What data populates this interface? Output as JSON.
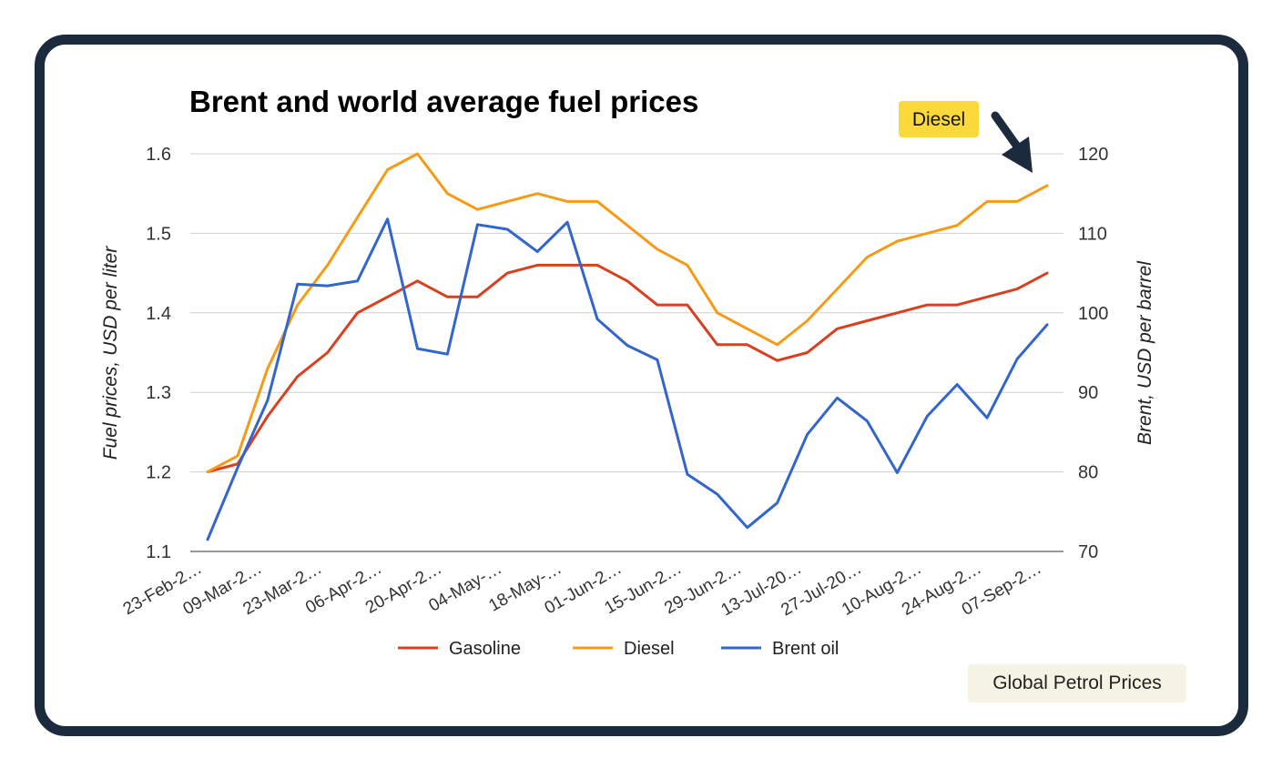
{
  "chart_data": {
    "type": "line",
    "title": "Brent and world average fuel prices",
    "ylabel": "Fuel prices, USD per liter",
    "y2label": "Brent, USD per barrel",
    "ylim": [
      1.1,
      1.6
    ],
    "y2lim": [
      70,
      120
    ],
    "yticks": [
      "1.1",
      "1.2",
      "1.3",
      "1.4",
      "1.5",
      "1.6"
    ],
    "y2ticks": [
      "70",
      "80",
      "90",
      "100",
      "110",
      "120"
    ],
    "x_tick_labels": [
      "23-Feb-2…",
      "09-Mar-2…",
      "23-Mar-2…",
      "06-Apr-2…",
      "20-Apr-2…",
      "04-May-…",
      "18-May-…",
      "01-Jun-2…",
      "15-Jun-2…",
      "29-Jun-2…",
      "13-Jul-20…",
      "27-Jul-20…",
      "10-Aug-2…",
      "24-Aug-2…",
      "07-Sep-2…"
    ],
    "grid": true,
    "legend_position": "bottom",
    "series": [
      {
        "name": "Gasoline",
        "axis": "left",
        "color": "#d8401f",
        "values": [
          1.2,
          1.21,
          1.27,
          1.32,
          1.35,
          1.4,
          1.42,
          1.44,
          1.42,
          1.42,
          1.45,
          1.46,
          1.46,
          1.46,
          1.44,
          1.41,
          1.41,
          1.36,
          1.36,
          1.34,
          1.35,
          1.38,
          1.39,
          1.4,
          1.41,
          1.41,
          1.42,
          1.43,
          1.45
        ]
      },
      {
        "name": "Diesel",
        "axis": "left",
        "color": "#f59b16",
        "values": [
          1.2,
          1.22,
          1.33,
          1.41,
          1.46,
          1.52,
          1.58,
          1.6,
          1.55,
          1.53,
          1.54,
          1.55,
          1.54,
          1.54,
          1.51,
          1.48,
          1.46,
          1.4,
          1.38,
          1.36,
          1.39,
          1.43,
          1.47,
          1.49,
          1.5,
          1.51,
          1.54,
          1.54,
          1.56
        ]
      },
      {
        "name": "Brent oil",
        "axis": "right",
        "color": "#3366cc",
        "values": [
          71.5,
          80.5,
          89.0,
          103.6,
          103.4,
          104.0,
          111.8,
          95.5,
          94.8,
          111.1,
          110.5,
          107.7,
          111.4,
          99.2,
          95.9,
          94.1,
          79.7,
          77.2,
          73.0,
          76.1,
          84.7,
          89.3,
          86.4,
          79.9,
          87.0,
          91.0,
          86.8,
          94.2,
          98.5
        ]
      }
    ]
  },
  "annotation": {
    "label": "Diesel",
    "color": "#fcd93a"
  },
  "source_label": "Global Petrol Prices"
}
